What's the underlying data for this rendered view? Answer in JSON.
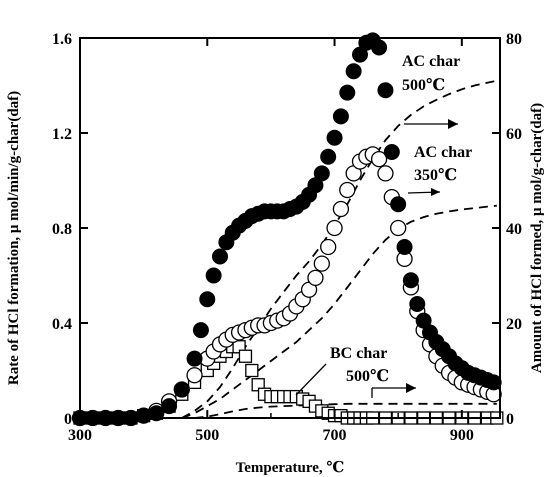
{
  "chart_data": {
    "type": "scatter",
    "xlabel": "Temperature, ℃",
    "ylabel_left": "Rate of HCl formation, μ mol/min/g-char(daf)",
    "ylabel_right": "Amount of HCl formed, μ mol/g-char(daf)",
    "xlim": [
      300,
      960
    ],
    "ylim_left": [
      0,
      1.6
    ],
    "ylim_right": [
      0,
      80
    ],
    "x_ticks": [
      "300",
      "500",
      "700",
      "900"
    ],
    "y_left_ticks": [
      "0",
      "0.4",
      "0.8",
      "1.2",
      "1.6"
    ],
    "y_right_ticks": [
      "0",
      "20",
      "40",
      "60",
      "80"
    ],
    "grid": false,
    "annotations": [
      {
        "line1": "AC char",
        "line2": "500℃"
      },
      {
        "line1": "AC char",
        "line2": "350℃"
      },
      {
        "line1": "BC char",
        "line2": "500℃"
      }
    ],
    "series": [
      {
        "marker": "filled-circle",
        "axis": "left",
        "x": [
          300,
          320,
          340,
          360,
          380,
          400,
          420,
          440,
          460,
          480,
          490,
          500,
          510,
          520,
          530,
          540,
          550,
          560,
          570,
          580,
          590,
          600,
          610,
          620,
          630,
          640,
          650,
          660,
          670,
          680,
          690,
          700,
          710,
          720,
          730,
          740,
          750,
          760,
          770,
          780,
          790,
          800,
          810,
          820,
          830,
          840,
          850,
          860,
          870,
          880,
          890,
          900,
          910,
          920,
          930,
          940,
          950
        ],
        "y": [
          0.0,
          0.0,
          0.0,
          0.0,
          0.0,
          0.01,
          0.02,
          0.05,
          0.12,
          0.25,
          0.37,
          0.5,
          0.6,
          0.68,
          0.74,
          0.78,
          0.81,
          0.83,
          0.85,
          0.86,
          0.87,
          0.87,
          0.87,
          0.87,
          0.88,
          0.89,
          0.91,
          0.94,
          0.98,
          1.03,
          1.1,
          1.18,
          1.27,
          1.37,
          1.46,
          1.53,
          1.58,
          1.59,
          1.56,
          1.38,
          1.12,
          0.9,
          0.72,
          0.58,
          0.48,
          0.41,
          0.36,
          0.32,
          0.29,
          0.26,
          0.23,
          0.21,
          0.19,
          0.18,
          0.17,
          0.16,
          0.15
        ]
      },
      {
        "marker": "open-circle",
        "axis": "left",
        "x": [
          300,
          320,
          340,
          360,
          380,
          400,
          420,
          440,
          460,
          480,
          500,
          510,
          520,
          530,
          540,
          550,
          560,
          570,
          580,
          590,
          600,
          610,
          620,
          630,
          640,
          650,
          660,
          670,
          680,
          690,
          700,
          710,
          720,
          730,
          740,
          750,
          760,
          770,
          780,
          790,
          800,
          810,
          820,
          830,
          840,
          850,
          860,
          870,
          880,
          890,
          900,
          910,
          920,
          930,
          940,
          950
        ],
        "y": [
          0.0,
          0.0,
          0.0,
          0.0,
          0.0,
          0.01,
          0.03,
          0.07,
          0.12,
          0.18,
          0.25,
          0.28,
          0.31,
          0.33,
          0.35,
          0.36,
          0.37,
          0.38,
          0.39,
          0.39,
          0.4,
          0.41,
          0.42,
          0.44,
          0.47,
          0.5,
          0.54,
          0.59,
          0.65,
          0.72,
          0.8,
          0.88,
          0.96,
          1.03,
          1.08,
          1.1,
          1.11,
          1.09,
          1.03,
          0.93,
          0.8,
          0.67,
          0.55,
          0.45,
          0.37,
          0.31,
          0.26,
          0.22,
          0.19,
          0.17,
          0.15,
          0.14,
          0.13,
          0.12,
          0.11,
          0.1
        ]
      },
      {
        "marker": "open-square",
        "axis": "left",
        "x": [
          300,
          320,
          340,
          360,
          380,
          400,
          420,
          440,
          460,
          480,
          500,
          510,
          520,
          530,
          540,
          550,
          560,
          570,
          580,
          590,
          600,
          610,
          620,
          630,
          640,
          650,
          660,
          670,
          680,
          690,
          700,
          710,
          720,
          730,
          740,
          750,
          760,
          780,
          800,
          820,
          840,
          860,
          880,
          900,
          920,
          940,
          955
        ],
        "y": [
          0.0,
          0.0,
          0.0,
          0.0,
          0.0,
          0.01,
          0.02,
          0.05,
          0.1,
          0.15,
          0.2,
          0.23,
          0.26,
          0.28,
          0.3,
          0.3,
          0.26,
          0.2,
          0.14,
          0.1,
          0.09,
          0.09,
          0.09,
          0.09,
          0.09,
          0.08,
          0.07,
          0.05,
          0.03,
          0.02,
          0.01,
          0.01,
          0.0,
          0.0,
          0.0,
          0.0,
          0.0,
          0.0,
          0.0,
          0.0,
          0.0,
          0.0,
          0.0,
          0.0,
          0.0,
          0.0,
          0.0
        ]
      },
      {
        "style": "dashed",
        "axis": "right",
        "x": [
          460,
          480,
          500,
          520,
          540,
          560,
          580,
          600,
          620,
          640,
          660,
          680,
          700,
          720,
          740,
          760,
          780,
          800,
          820,
          840,
          860,
          880,
          900,
          920,
          940,
          955
        ],
        "y": [
          0,
          1.5,
          3.5,
          6.5,
          10.5,
          15,
          19,
          23,
          26.5,
          30,
          33,
          36.5,
          40.5,
          45,
          50,
          54.5,
          58.5,
          61.5,
          63.8,
          65.6,
          67.0,
          68.2,
          69.2,
          70.0,
          70.6,
          71.0
        ]
      },
      {
        "style": "dashed",
        "axis": "right",
        "x": [
          460,
          480,
          500,
          520,
          540,
          560,
          580,
          600,
          620,
          640,
          660,
          680,
          700,
          720,
          740,
          760,
          780,
          800,
          820,
          840,
          860,
          880,
          900,
          920,
          940,
          955
        ],
        "y": [
          0,
          1.0,
          2.5,
          4.0,
          6.0,
          8.0,
          10.0,
          12.0,
          14.0,
          16.0,
          18.5,
          21.0,
          24.0,
          27.5,
          31.0,
          34.5,
          37.5,
          39.8,
          41.3,
          42.3,
          43.0,
          43.5,
          43.9,
          44.2,
          44.5,
          44.7
        ]
      },
      {
        "style": "dashed",
        "axis": "right",
        "x": [
          480,
          500,
          520,
          540,
          560,
          580,
          600,
          620,
          640,
          660,
          680,
          700,
          720,
          740,
          760,
          800,
          850,
          900,
          955
        ],
        "y": [
          0,
          0.3,
          0.8,
          1.4,
          1.9,
          2.2,
          2.4,
          2.5,
          2.6,
          2.7,
          2.8,
          2.9,
          3.0,
          3.0,
          3.0,
          3.0,
          3.0,
          3.0,
          3.0
        ]
      }
    ]
  }
}
